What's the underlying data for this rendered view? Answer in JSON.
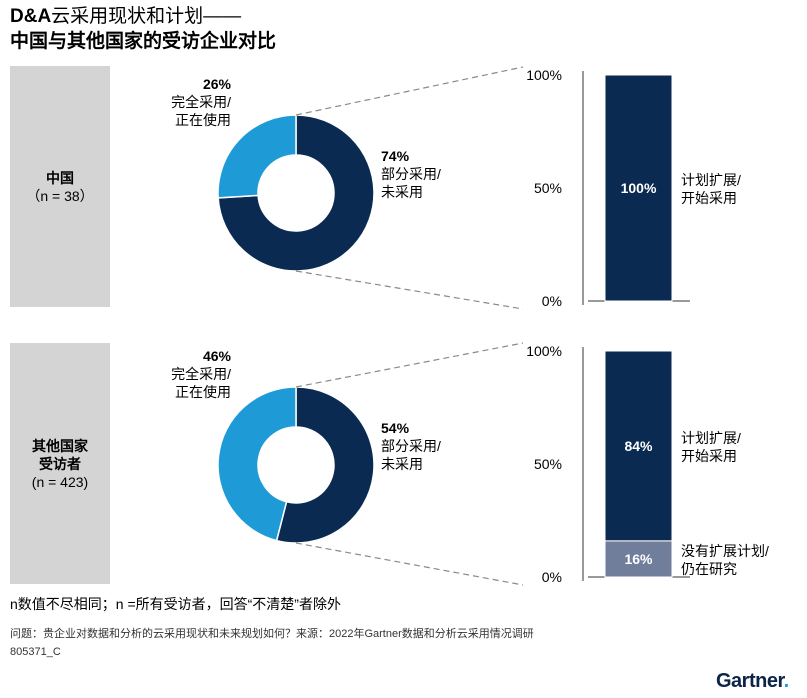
{
  "title": {
    "line1_prefix": "D&A",
    "line1_rest": "云采用现状和计划——",
    "line2": "中国与其他国家的受访企业对比"
  },
  "colors": {
    "dark": "#0b2a52",
    "light": "#1e9bd7",
    "gray": "#707e9c",
    "box": "#d4d4d4",
    "dashed": "#8a8a8a"
  },
  "chart_data": [
    {
      "type": "pie",
      "group": "china",
      "group_label": "中国",
      "group_n": "（n = 38）",
      "slices": [
        {
          "name": "完全采用/正在使用",
          "value": 26,
          "pct": "26%",
          "line1": "完全采用/",
          "line2": "正在使用",
          "color": "light"
        },
        {
          "name": "部分采用/未采用",
          "value": 74,
          "pct": "74%",
          "line1": "部分采用/",
          "line2": "未采用",
          "color": "dark"
        }
      ],
      "stack": {
        "type": "bar",
        "ylim": [
          0,
          100
        ],
        "ticks": [
          "100%",
          "50%",
          "0%"
        ],
        "segments": [
          {
            "name": "计划扩展/开始采用",
            "value": 100,
            "label": "100%",
            "line1": "计划扩展/",
            "line2": "开始采用",
            "color": "dark"
          }
        ]
      }
    },
    {
      "type": "pie",
      "group": "others",
      "group_label_1": "其他国家",
      "group_label_2": "受访者",
      "group_n": "(n = 423)",
      "slices": [
        {
          "name": "完全采用/正在使用",
          "value": 46,
          "pct": "46%",
          "line1": "完全采用/",
          "line2": "正在使用",
          "color": "light"
        },
        {
          "name": "部分采用/未采用",
          "value": 54,
          "pct": "54%",
          "line1": "部分采用/",
          "line2": "未采用",
          "color": "dark"
        }
      ],
      "stack": {
        "type": "bar",
        "ylim": [
          0,
          100
        ],
        "ticks": [
          "100%",
          "50%",
          "0%"
        ],
        "segments": [
          {
            "name": "没有扩展计划/仍在研究",
            "value": 16,
            "label": "16%",
            "line1": "没有扩展计划/",
            "line2": "仍在研究",
            "color": "gray"
          },
          {
            "name": "计划扩展/开始采用",
            "value": 84,
            "label": "84%",
            "line1": "计划扩展/",
            "line2": "开始采用",
            "color": "dark"
          }
        ]
      }
    }
  ],
  "footnote": "n数值不尽相同；n =所有受访者，回答“不清楚”者除外",
  "source": "问题：贵企业对数据和分析的云采用现状和未来规划如何？来源：2022年Gartner数据和分析云采用情况调研",
  "code": "805371_C",
  "logo": {
    "text": "Gartner",
    "dot": "."
  }
}
